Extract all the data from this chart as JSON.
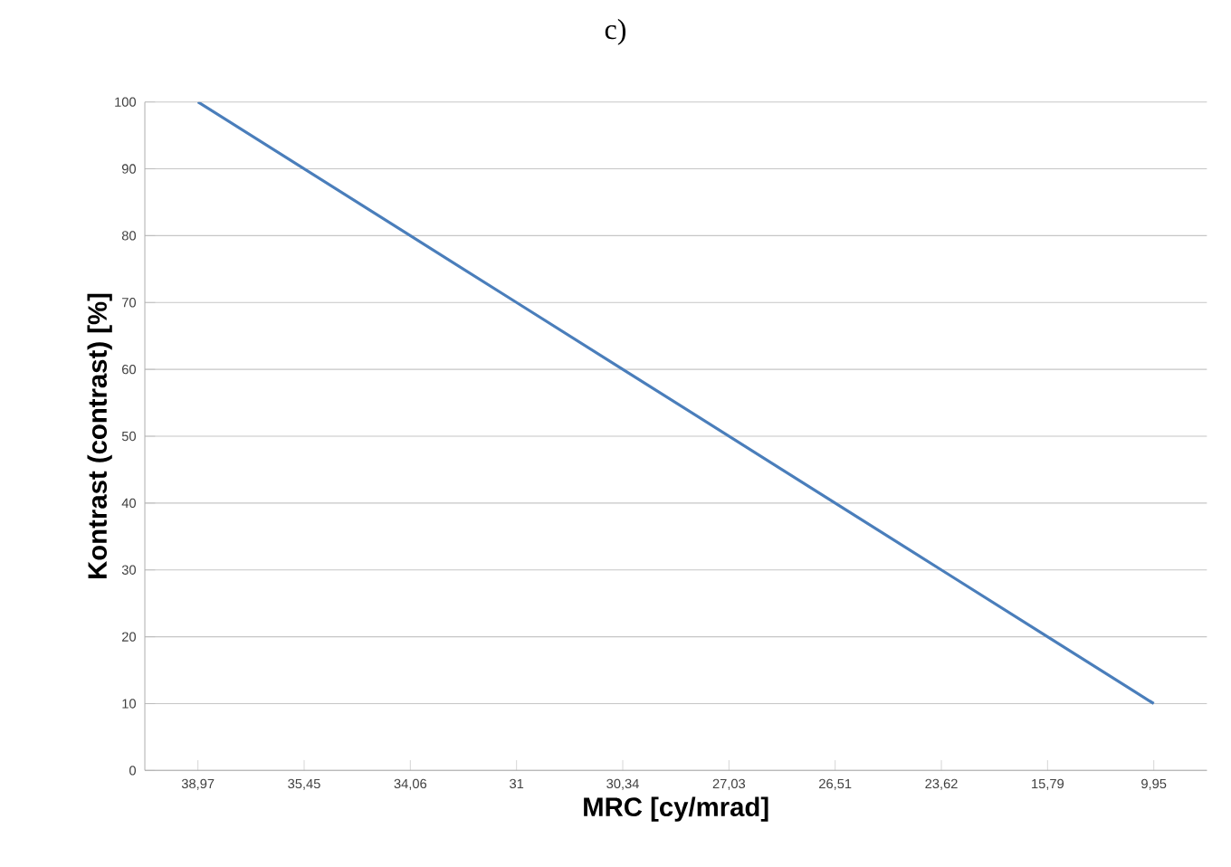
{
  "chart_data": {
    "type": "line",
    "title": "c)",
    "xlabel": "MRC [cy/mrad]",
    "ylabel": "Kontrast (contrast) [%]",
    "categories": [
      "38,97",
      "35,45",
      "34,06",
      "31",
      "30,34",
      "27,03",
      "26,51",
      "23,62",
      "15,79",
      "9,95"
    ],
    "values": [
      100,
      90,
      80,
      70,
      60,
      50,
      40,
      30,
      20,
      10
    ],
    "color": "#4a7ebb",
    "ylim": [
      0,
      100
    ],
    "yticks": [
      0,
      10,
      20,
      30,
      40,
      50,
      60,
      70,
      80,
      90,
      100
    ],
    "grid": "y",
    "marker": "none",
    "line_style": "solid"
  }
}
